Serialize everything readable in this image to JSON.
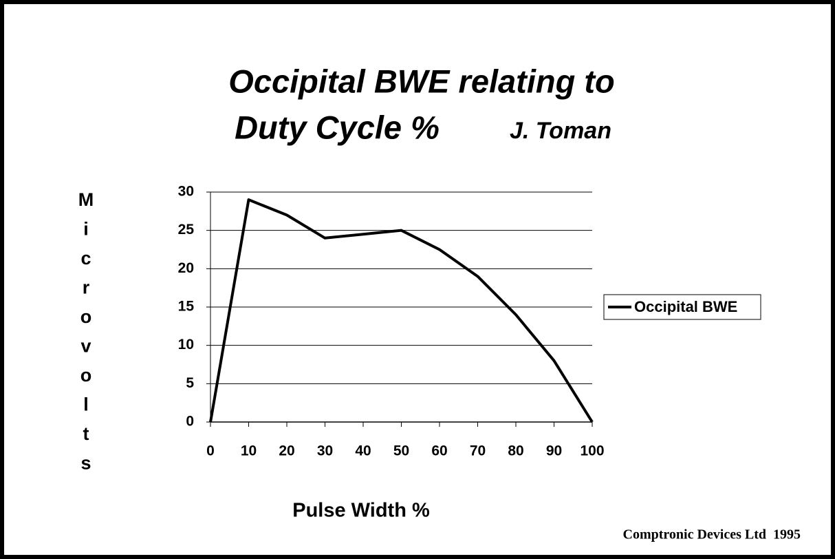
{
  "chart_data": {
    "type": "line",
    "title": [
      "Occipital BWE relating to",
      "Duty Cycle %"
    ],
    "subtitle": "J. Toman",
    "y_label": "Microvolts",
    "x_label": "Pulse Width %",
    "footer": "Comptronic Devices Ltd  1995",
    "x": [
      0,
      10,
      20,
      30,
      40,
      50,
      60,
      70,
      80,
      90,
      100
    ],
    "series": [
      {
        "name": "Occipital BWE",
        "color": "#000000",
        "values": [
          0,
          29,
          27,
          24,
          24.5,
          25,
          22.5,
          19,
          14,
          8,
          0
        ]
      }
    ],
    "xlim": [
      0,
      100
    ],
    "xticks": [
      0,
      10,
      20,
      30,
      40,
      50,
      60,
      70,
      80,
      90,
      100
    ],
    "ylim": [
      0,
      30
    ],
    "yticks": [
      0,
      5,
      10,
      15,
      20,
      25,
      30
    ],
    "grid": true,
    "legend": "right"
  }
}
